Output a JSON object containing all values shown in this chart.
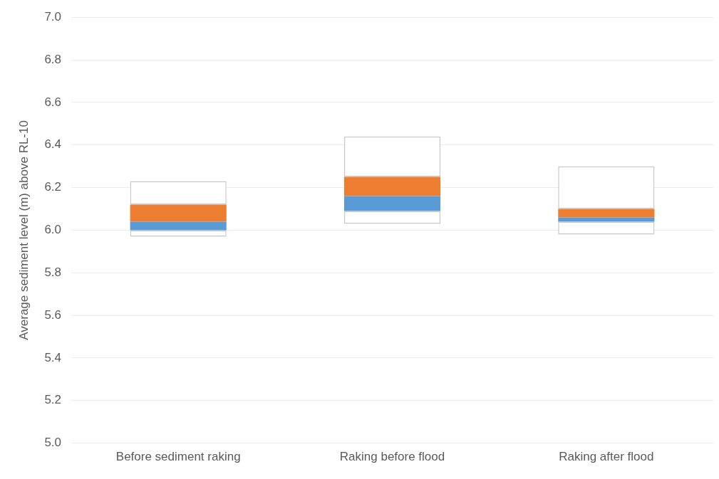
{
  "chart_data": {
    "type": "bar",
    "ylabel": "Average sediment level (m) above RL-10",
    "categories": [
      "Before sediment raking",
      "Raking before flood",
      "Raking after flood"
    ],
    "series": [
      {
        "color": "#ffffff",
        "base": [
          5.97,
          6.03,
          5.98
        ],
        "values": [
          0.03,
          0.06,
          0.06
        ]
      },
      {
        "color": "#5b9bd5",
        "base": [
          6.0,
          6.09,
          6.04
        ],
        "values": [
          0.04,
          0.07,
          0.02
        ]
      },
      {
        "color": "#ed7d31",
        "base": [
          6.04,
          6.16,
          6.06
        ],
        "values": [
          0.08,
          0.09,
          0.04
        ]
      },
      {
        "color": "#ffffff",
        "base": [
          6.12,
          6.25,
          6.1
        ],
        "values": [
          0.11,
          0.19,
          0.2
        ]
      }
    ],
    "ylim": [
      5.0,
      7.0
    ],
    "yticks": [
      {
        "value": 5,
        "label": "5.0"
      },
      {
        "value": 5.2,
        "label": "5.2"
      },
      {
        "value": 5.4,
        "label": "5.4"
      },
      {
        "value": 5.6,
        "label": "5.6"
      },
      {
        "value": 5.8,
        "label": "5.8"
      },
      {
        "value": 6,
        "label": "6.0"
      },
      {
        "value": 6.2,
        "label": "6.2"
      },
      {
        "value": 6.4,
        "label": "6.4"
      },
      {
        "value": 6.6,
        "label": "6.6"
      },
      {
        "value": 6.8,
        "label": "6.8"
      },
      {
        "value": 7,
        "label": "7.0"
      }
    ],
    "grid": "y"
  }
}
